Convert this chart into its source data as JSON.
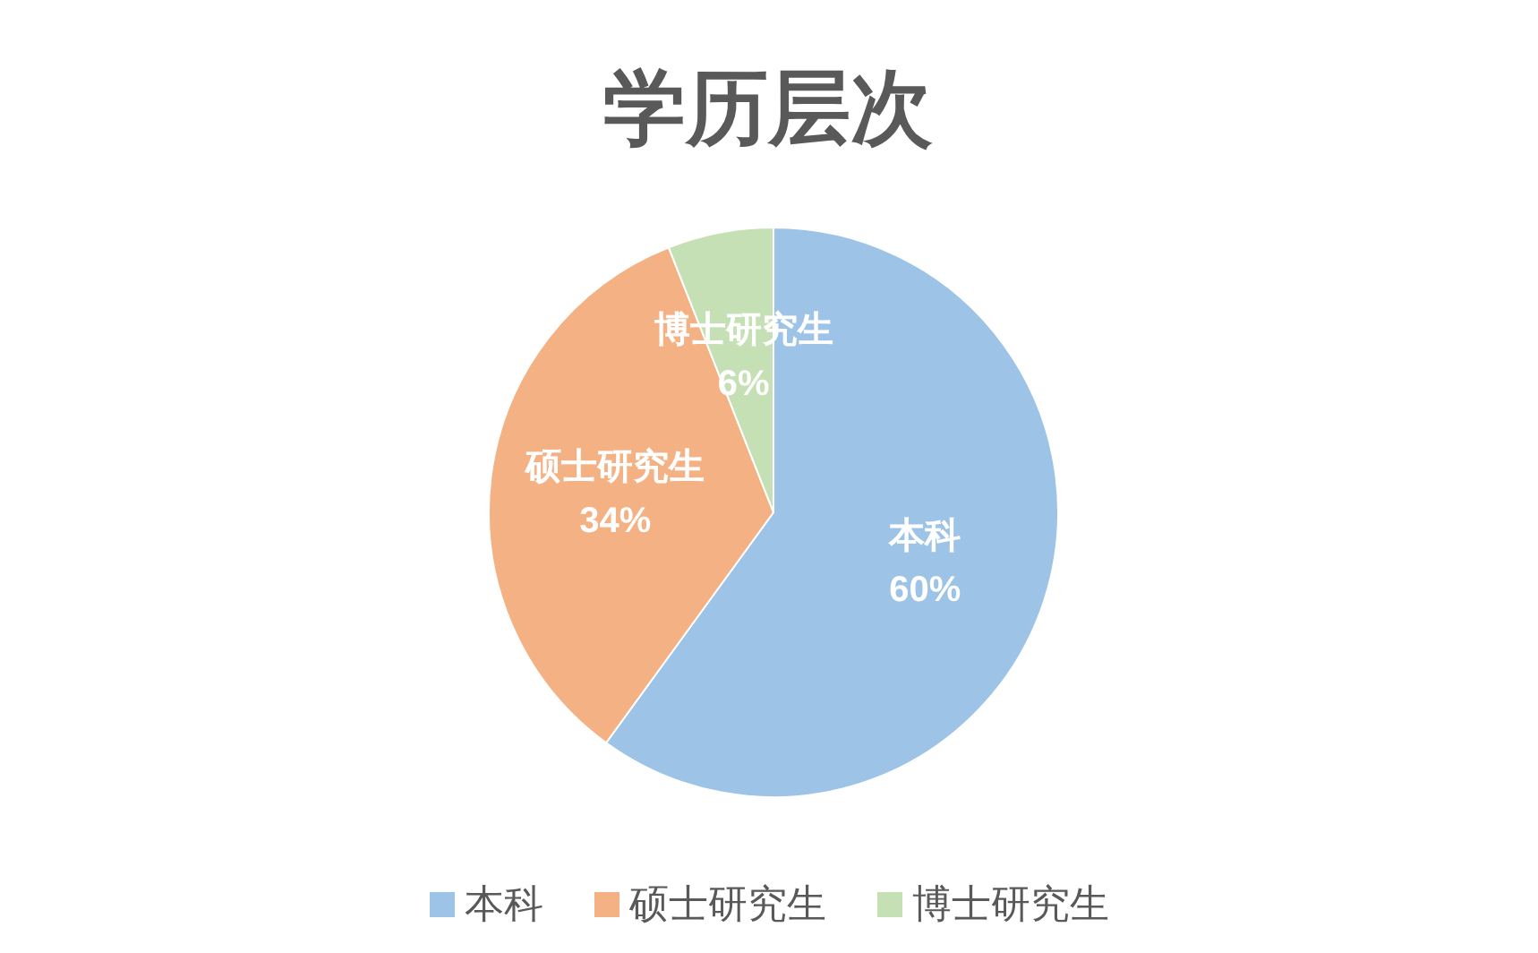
{
  "chart_data": {
    "type": "pie",
    "title": "学历层次",
    "categories": [
      "本科",
      "硕士研究生",
      "博士研究生"
    ],
    "values": [
      60,
      34,
      6
    ],
    "value_labels": [
      "60%",
      "34%",
      "6%"
    ],
    "colors": [
      "#9dc3e6",
      "#f4b183",
      "#c5e0b4"
    ],
    "legend": "bottom"
  }
}
